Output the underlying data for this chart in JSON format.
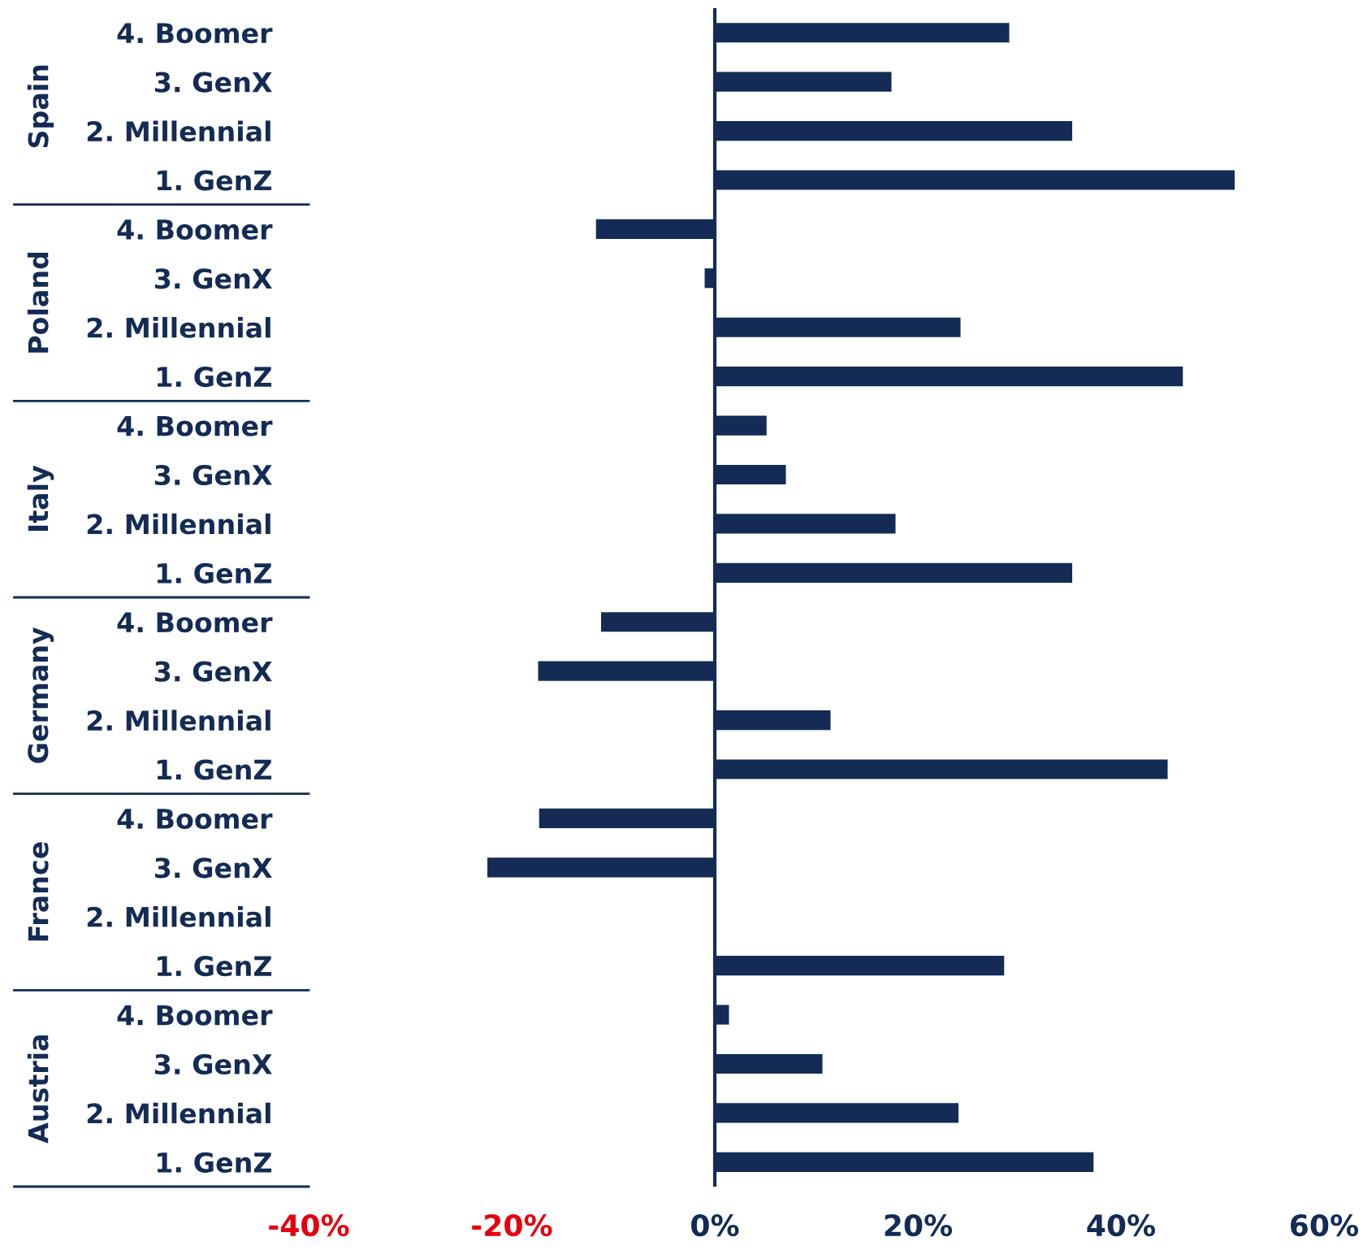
{
  "chart_data": {
    "type": "bar",
    "orientation": "horizontal",
    "categories": [
      "4. Boomer",
      "3. GenX",
      "2. Millennial",
      "1. GenZ",
      "4. Boomer",
      "3. GenX",
      "2. Millennial",
      "1. GenZ",
      "4. Boomer",
      "3. GenX",
      "2. Millennial",
      "1. GenZ",
      "4. Boomer",
      "3. GenX",
      "2. Millennial",
      "1. GenZ",
      "4. Boomer",
      "3. GenX",
      "2. Millennial",
      "1. GenZ",
      "4. Boomer",
      "3. GenX",
      "2. Millennial",
      "1. GenZ"
    ],
    "values": [
      29.0,
      17.4,
      35.2,
      51.2,
      -11.7,
      -1.0,
      24.2,
      46.1,
      5.1,
      7.0,
      17.8,
      35.2,
      -11.2,
      -17.4,
      11.4,
      44.6,
      -17.3,
      -22.4,
      null,
      28.5,
      1.4,
      10.6,
      24.0,
      37.3
    ],
    "color": "#132b55",
    "annotations": [
      "Spain",
      "Poland",
      "Italy",
      "Germany",
      "France",
      "Austria"
    ],
    "xlim": [
      -40,
      60
    ],
    "xticks": [
      {
        "value": -40,
        "label": "-40%"
      },
      {
        "value": -20,
        "label": "-20%"
      },
      {
        "value": 0,
        "label": "0%"
      },
      {
        "value": 20,
        "label": "20%"
      },
      {
        "value": 40,
        "label": "40%"
      },
      {
        "value": 60,
        "label": "60%"
      }
    ],
    "grid": false,
    "legend": false
  }
}
